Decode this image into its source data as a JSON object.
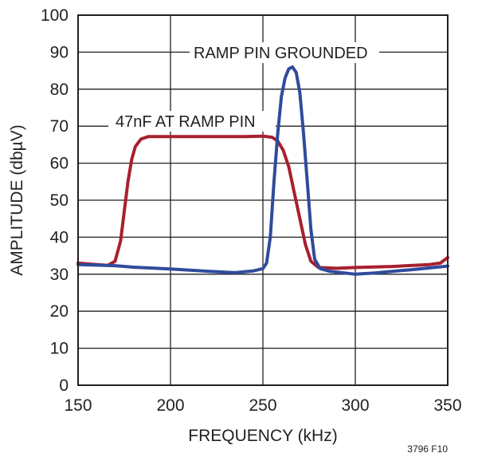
{
  "chart_data": {
    "type": "line",
    "title": "",
    "xlabel": "FREQUENCY (kHz)",
    "ylabel": "AMPLITUDE (dbµV)",
    "xlim": [
      150,
      350
    ],
    "ylim": [
      0,
      100
    ],
    "x_ticks": [
      150,
      200,
      250,
      300,
      350
    ],
    "y_ticks": [
      0,
      10,
      20,
      30,
      40,
      50,
      60,
      70,
      80,
      90,
      100
    ],
    "grid": true,
    "figure_id": "3796 F10",
    "series": [
      {
        "name": "47nF AT RAMP PIN",
        "color": "#a8202e",
        "points": [
          [
            150,
            33.0
          ],
          [
            160,
            32.6
          ],
          [
            166,
            32.4
          ],
          [
            170,
            33.5
          ],
          [
            173,
            39
          ],
          [
            175,
            47
          ],
          [
            177,
            55
          ],
          [
            179,
            61
          ],
          [
            181,
            64.5
          ],
          [
            184,
            66.5
          ],
          [
            188,
            67.2
          ],
          [
            200,
            67.2
          ],
          [
            220,
            67.2
          ],
          [
            240,
            67.2
          ],
          [
            250,
            67.3
          ],
          [
            255,
            67.0
          ],
          [
            258,
            66.0
          ],
          [
            261,
            63.5
          ],
          [
            264,
            59
          ],
          [
            267,
            52
          ],
          [
            270,
            45
          ],
          [
            273,
            38
          ],
          [
            276,
            33.5
          ],
          [
            280,
            31.8
          ],
          [
            290,
            31.6
          ],
          [
            300,
            31.8
          ],
          [
            320,
            32.1
          ],
          [
            340,
            32.6
          ],
          [
            346,
            33.0
          ],
          [
            350,
            34.5
          ]
        ]
      },
      {
        "name": "RAMP PIN GROUNDED",
        "color": "#2f4b9c",
        "points": [
          [
            150,
            32.6
          ],
          [
            170,
            32.3
          ],
          [
            180,
            31.9
          ],
          [
            200,
            31.4
          ],
          [
            220,
            30.8
          ],
          [
            235,
            30.4
          ],
          [
            245,
            30.9
          ],
          [
            250,
            31.5
          ],
          [
            252,
            33
          ],
          [
            254,
            40
          ],
          [
            256,
            55
          ],
          [
            258,
            68
          ],
          [
            260,
            78
          ],
          [
            262,
            83
          ],
          [
            264,
            85.5
          ],
          [
            266,
            86
          ],
          [
            268,
            84.5
          ],
          [
            270,
            79
          ],
          [
            272,
            68
          ],
          [
            274,
            55
          ],
          [
            276,
            42
          ],
          [
            278,
            34
          ],
          [
            281,
            31.5
          ],
          [
            286,
            30.8
          ],
          [
            300,
            30.0
          ],
          [
            310,
            30.3
          ],
          [
            330,
            31.2
          ],
          [
            350,
            32.2
          ]
        ]
      }
    ]
  }
}
